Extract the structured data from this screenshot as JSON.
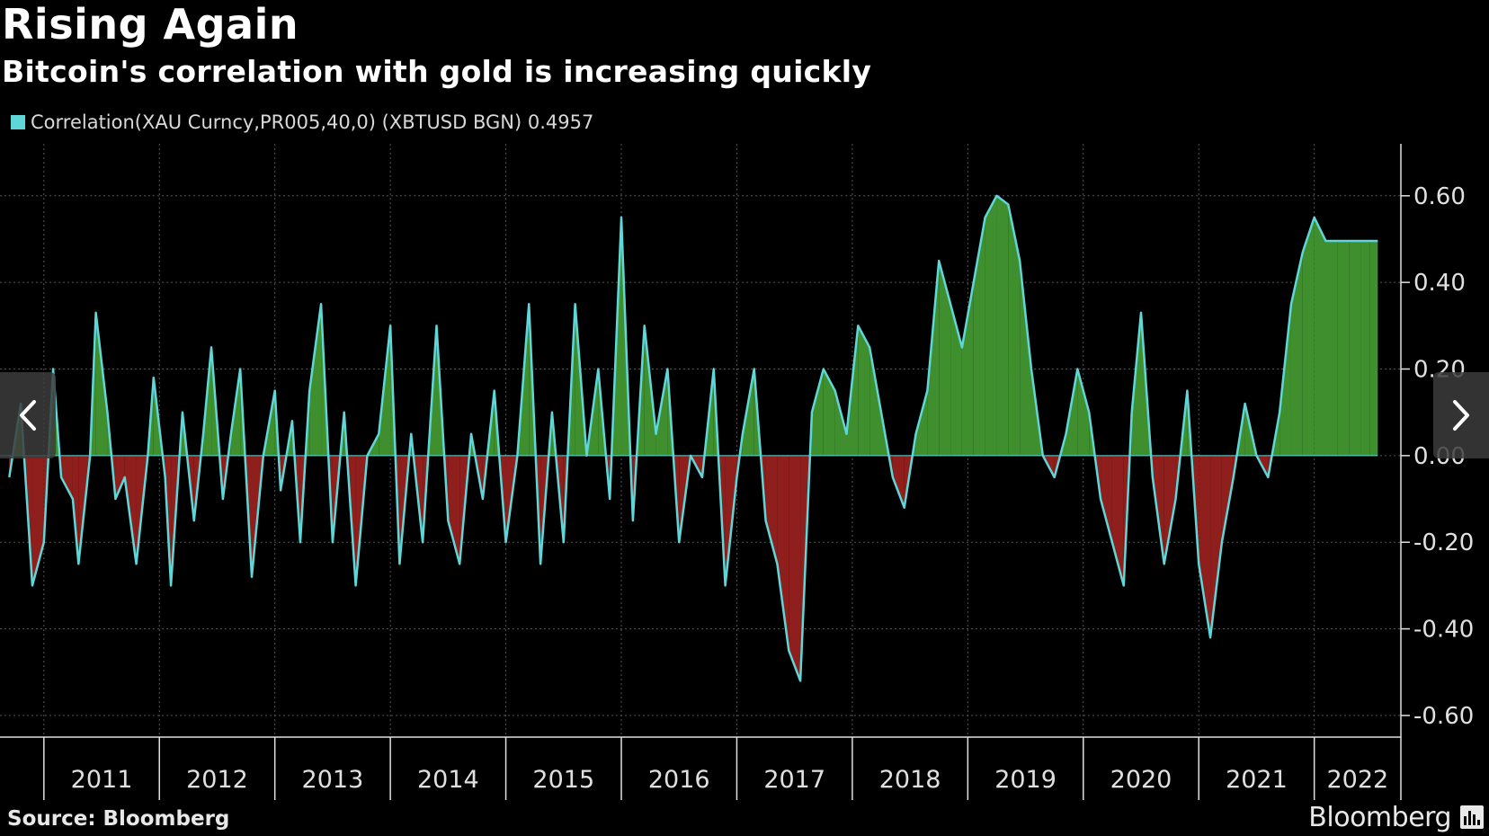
{
  "header": {
    "title": "Rising Again",
    "subtitle": "Bitcoin's correlation with gold is increasing quickly"
  },
  "legend": {
    "label": "Correlation(XAU Curncy,PR005,40,0) (XBTUSD BGN) 0.4957",
    "color": "#5fd6d8"
  },
  "footer": {
    "source": "Source: Bloomberg",
    "brand": "Bloomberg"
  },
  "nav": {
    "prev_icon": "chevron-left-icon",
    "next_icon": "chevron-right-icon"
  },
  "colors": {
    "background": "#000000",
    "positive_fill": "#3f8f2e",
    "negative_fill": "#8e1f1d",
    "line": "#5fd6d8",
    "grid": "#555555",
    "axis": "#e0e0e0"
  },
  "chart_data": {
    "type": "area",
    "title": "Rising Again",
    "subtitle": "Bitcoin's correlation with gold is increasing quickly",
    "series": [
      {
        "name": "Correlation(XAU Curncy,PR005,40,0) (XBTUSD BGN)",
        "last_value": 0.4957,
        "x": [
          2010.7,
          2010.8,
          2010.9,
          2011.0,
          2011.08,
          2011.15,
          2011.25,
          2011.3,
          2011.4,
          2011.45,
          2011.55,
          2011.62,
          2011.7,
          2011.8,
          2011.9,
          2011.95,
          2012.05,
          2012.1,
          2012.2,
          2012.3,
          2012.38,
          2012.45,
          2012.55,
          2012.62,
          2012.7,
          2012.8,
          2012.9,
          2013.0,
          2013.05,
          2013.15,
          2013.22,
          2013.3,
          2013.4,
          2013.5,
          2013.6,
          2013.7,
          2013.8,
          2013.9,
          2014.0,
          2014.08,
          2014.18,
          2014.28,
          2014.4,
          2014.5,
          2014.6,
          2014.7,
          2014.8,
          2014.9,
          2015.0,
          2015.1,
          2015.2,
          2015.3,
          2015.4,
          2015.5,
          2015.6,
          2015.7,
          2015.8,
          2015.9,
          2016.0,
          2016.1,
          2016.2,
          2016.3,
          2016.4,
          2016.5,
          2016.6,
          2016.7,
          2016.8,
          2016.9,
          2017.0,
          2017.05,
          2017.15,
          2017.25,
          2017.35,
          2017.45,
          2017.55,
          2017.65,
          2017.75,
          2017.85,
          2017.95,
          2018.05,
          2018.15,
          2018.25,
          2018.35,
          2018.45,
          2018.55,
          2018.65,
          2018.75,
          2018.85,
          2018.95,
          2019.05,
          2019.15,
          2019.25,
          2019.35,
          2019.45,
          2019.55,
          2019.65,
          2019.75,
          2019.85,
          2019.95,
          2020.05,
          2020.15,
          2020.25,
          2020.35,
          2020.42,
          2020.5,
          2020.6,
          2020.7,
          2020.8,
          2020.9,
          2021.0,
          2021.1,
          2021.2,
          2021.3,
          2021.4,
          2021.5,
          2021.6,
          2021.7,
          2021.8,
          2021.9,
          2022.0,
          2022.1,
          2022.2,
          2022.3,
          2022.4,
          2022.48,
          2022.55
        ],
        "y": [
          -0.05,
          0.12,
          -0.3,
          -0.2,
          0.2,
          -0.05,
          -0.1,
          -0.25,
          0.0,
          0.33,
          0.1,
          -0.1,
          -0.05,
          -0.25,
          0.0,
          0.18,
          -0.05,
          -0.3,
          0.1,
          -0.15,
          0.05,
          0.25,
          -0.1,
          0.05,
          0.2,
          -0.28,
          0.0,
          0.15,
          -0.08,
          0.08,
          -0.2,
          0.15,
          0.35,
          -0.2,
          0.1,
          -0.3,
          0.0,
          0.05,
          0.3,
          -0.25,
          0.05,
          -0.2,
          0.3,
          -0.15,
          -0.25,
          0.05,
          -0.1,
          0.15,
          -0.2,
          0.0,
          0.35,
          -0.25,
          0.1,
          -0.2,
          0.35,
          0.0,
          0.2,
          -0.1,
          0.55,
          -0.15,
          0.3,
          0.05,
          0.2,
          -0.2,
          0.0,
          -0.05,
          0.2,
          -0.3,
          -0.05,
          0.05,
          0.2,
          -0.15,
          -0.25,
          -0.45,
          -0.52,
          0.1,
          0.2,
          0.15,
          0.05,
          0.3,
          0.25,
          0.1,
          -0.05,
          -0.12,
          0.05,
          0.15,
          0.45,
          0.35,
          0.25,
          0.4,
          0.55,
          0.6,
          0.58,
          0.45,
          0.2,
          0.0,
          -0.05,
          0.05,
          0.2,
          0.1,
          -0.1,
          -0.2,
          -0.3,
          0.1,
          0.33,
          -0.05,
          -0.25,
          -0.1,
          0.15,
          -0.25,
          -0.42,
          -0.2,
          -0.05,
          0.12,
          0.0,
          -0.05,
          0.1,
          0.35,
          0.47,
          0.55,
          0.4957,
          0.4957,
          0.4957,
          0.4957,
          0.4957,
          0.4957
        ]
      }
    ],
    "x_tick_labels": [
      "2011",
      "2012",
      "2013",
      "2014",
      "2015",
      "2016",
      "2017",
      "2018",
      "2019",
      "2020",
      "2021",
      "2022"
    ],
    "y_tick_labels": [
      "0.60",
      "0.40",
      "0.20",
      "0.00",
      "-0.20",
      "-0.40",
      "-0.60"
    ],
    "y_ticks": [
      0.6,
      0.4,
      0.2,
      0.0,
      -0.2,
      -0.4,
      -0.6
    ],
    "ylim": [
      -0.65,
      0.72
    ],
    "xlim": [
      2010.62,
      2022.75
    ],
    "grid": true,
    "legend_position": "top-left",
    "y_axis_side": "right",
    "xlabel": "",
    "ylabel": ""
  }
}
